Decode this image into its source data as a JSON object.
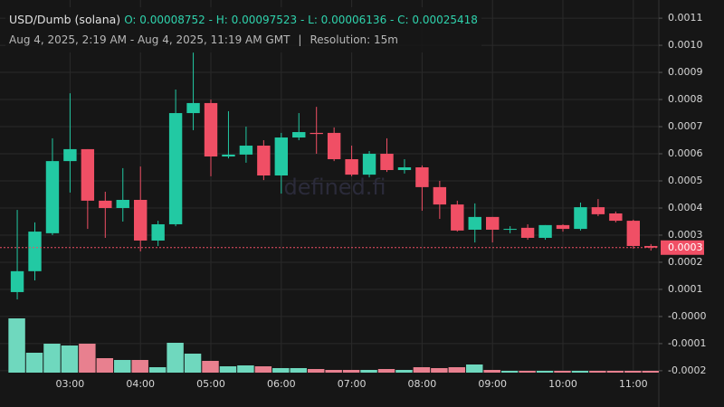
{
  "header": {
    "title": "USD/Dumb (solana)",
    "ohlc": "O: 0.00008752 - H: 0.00097523 - L: 0.00006136 - C: 0.00025418",
    "range": "Aug 4, 2025, 2:19 AM - Aug 4, 2025, 11:19 AM GMT",
    "separator": "|",
    "resolution": "Resolution: 15m"
  },
  "chart_data": {
    "type": "candlestick",
    "watermark": "defined.fi",
    "open": [
      9e-05,
      0.000167,
      0.000307,
      0.000573,
      0.000617,
      0.000427,
      0.0004,
      0.00043,
      0.00028,
      0.00034,
      0.00075,
      0.000787,
      0.00059,
      0.000597,
      0.00063,
      0.00052,
      0.00066,
      0.000677,
      0.000677,
      0.00058,
      0.000523,
      0.0006,
      0.00054,
      0.00055,
      0.000477,
      0.000413,
      0.00032,
      0.000367,
      0.00032,
      0.000327,
      0.00029,
      0.000337,
      0.000323,
      0.000403,
      0.00038,
      0.000353,
      0.00026
    ],
    "high": [
      0.000393,
      0.000347,
      0.000657,
      0.000823,
      0.000617,
      0.00046,
      0.000547,
      0.000553,
      0.000353,
      0.000837,
      0.000973,
      0.0008,
      0.000757,
      0.0007,
      0.00065,
      0.000677,
      0.00075,
      0.000773,
      0.000697,
      0.00063,
      0.00061,
      0.000657,
      0.00058,
      0.000557,
      0.0005,
      0.000427,
      0.000417,
      0.000367,
      0.000333,
      0.00034,
      0.000337,
      0.00034,
      0.00042,
      0.000433,
      0.000387,
      0.000357,
      0.000267
    ],
    "low": [
      6.3e-05,
      0.000133,
      0.0003,
      0.000457,
      0.000323,
      0.00029,
      0.00035,
      0.00024,
      0.00026,
      0.000333,
      0.000687,
      0.000517,
      0.000583,
      0.000567,
      0.000503,
      0.000453,
      0.00065,
      0.0006,
      0.000573,
      0.000517,
      0.000513,
      0.000533,
      0.000527,
      0.00039,
      0.00036,
      0.000313,
      0.000273,
      0.000273,
      0.000307,
      0.000283,
      0.000283,
      0.000313,
      0.000317,
      0.00037,
      0.000347,
      0.00025,
      0.000243
    ],
    "close": [
      0.000167,
      0.000313,
      0.000573,
      0.000617,
      0.000427,
      0.0004,
      0.00043,
      0.00028,
      0.00034,
      0.00075,
      0.000787,
      0.00059,
      0.000597,
      0.00063,
      0.00052,
      0.00066,
      0.00068,
      0.000673,
      0.00058,
      0.000523,
      0.0006,
      0.00054,
      0.00055,
      0.000477,
      0.000413,
      0.000317,
      0.000367,
      0.00032,
      0.000323,
      0.00029,
      0.000337,
      0.000323,
      0.000403,
      0.000377,
      0.000353,
      0.00026,
      0.000254
    ],
    "volume": [
      60,
      22,
      32,
      30,
      32,
      16,
      14,
      14,
      6,
      33,
      21,
      13,
      7,
      8,
      7,
      5,
      5,
      4,
      3,
      3,
      3,
      4,
      3,
      6,
      5,
      6,
      9,
      3,
      2,
      2,
      2,
      2,
      2,
      2,
      2,
      2,
      2
    ],
    "up_color": "#22c9a3",
    "down_color": "#f04f65",
    "up_volume_color": "#6fd8be",
    "down_volume_color": "#e8808f",
    "xlim": [
      -0.98,
      36.45
    ],
    "xticks": [
      {
        "value": 3,
        "label": "03:00"
      },
      {
        "value": 7,
        "label": "04:00"
      },
      {
        "value": 11,
        "label": "05:00"
      },
      {
        "value": 15,
        "label": "06:00"
      },
      {
        "value": 19,
        "label": "07:00"
      },
      {
        "value": 23,
        "label": "08:00"
      },
      {
        "value": 27,
        "label": "09:00"
      },
      {
        "value": 31,
        "label": "10:00"
      },
      {
        "value": 35,
        "label": "11:00"
      }
    ],
    "ylim": [
      -0.000207,
      0.001167
    ],
    "yticks": [
      0.0011,
      {
        "value": 0.001,
        "label": "0.0010"
      },
      0.0009,
      0.0008,
      0.0007,
      0.0006,
      0.0005,
      0.0004,
      0.0003,
      0.0002,
      0.0001,
      {
        "value": 0,
        "label": "-0.0000"
      },
      -0.0001,
      -0.0002
    ],
    "last_price": {
      "value": 0.000254,
      "label": "0.0003"
    },
    "grid": true
  }
}
